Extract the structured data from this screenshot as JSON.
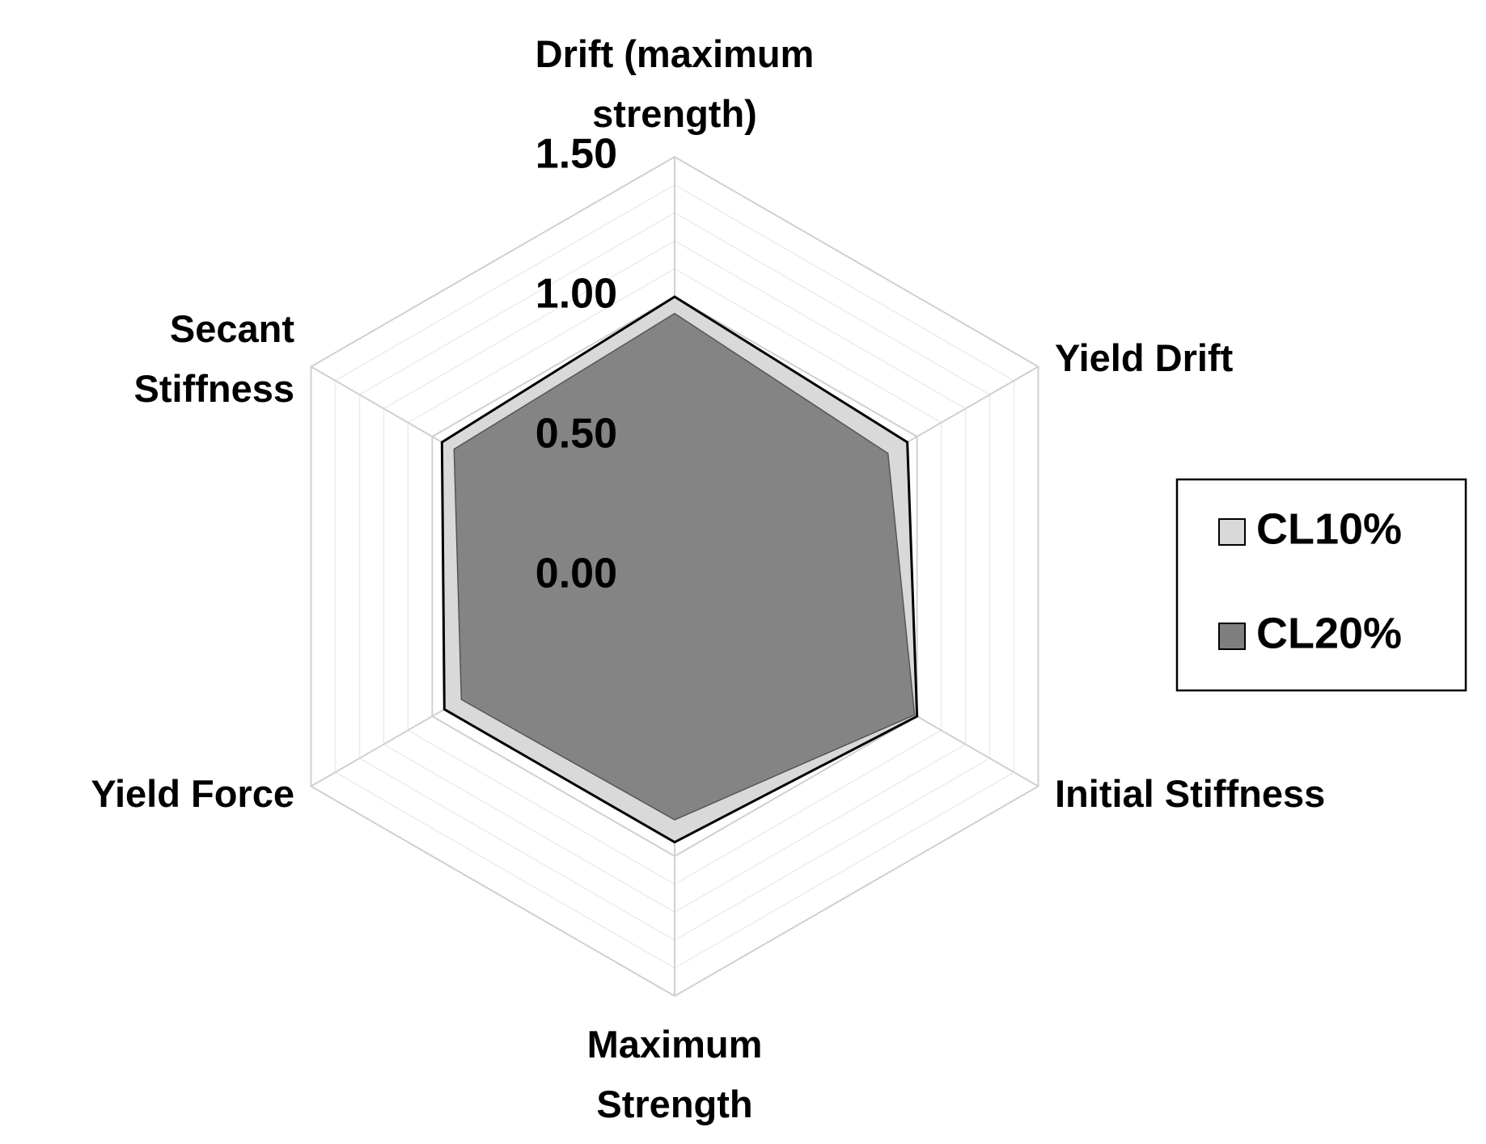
{
  "chart_data": {
    "type": "radar",
    "categories": [
      "Drift (maximum strength)",
      "Yield Drift",
      "Initial Stiffness",
      "Maximum Strength",
      "Yield Force",
      "Secant Stiffness"
    ],
    "series": [
      {
        "name": "CL10%",
        "color": "#d9d9d9",
        "values": [
          1.0,
          0.96,
          1.0,
          0.95,
          0.95,
          0.96
        ]
      },
      {
        "name": "CL20%",
        "color": "#7f7f7f",
        "values": [
          0.94,
          0.88,
          0.99,
          0.87,
          0.88,
          0.91
        ]
      }
    ],
    "ylim": [
      0,
      1.5
    ],
    "yticks": [
      {
        "value": 0,
        "label": "0.00"
      },
      {
        "value": 0.5,
        "label": "0.50"
      },
      {
        "value": 1,
        "label": "1.00"
      },
      {
        "value": 1.5,
        "label": "1.50"
      }
    ],
    "grid": true,
    "legend": "right"
  }
}
